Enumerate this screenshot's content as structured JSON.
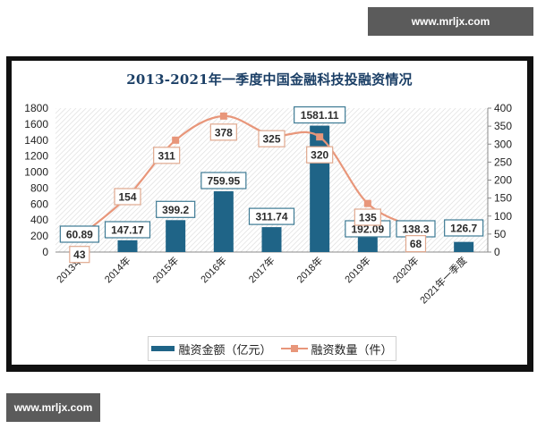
{
  "watermark": {
    "top": "www.mrljx.com",
    "bottom": "www.mrljx.com"
  },
  "colors": {
    "bar": "#1f6487",
    "line": "#e8967a",
    "title": "#1b3f66",
    "frame": "#111111"
  },
  "chart_data": {
    "type": "bar+line",
    "title": "2013-2021年一季度中国金融科技投融资情况",
    "categories": [
      "2013年",
      "2014年",
      "2015年",
      "2016年",
      "2017年",
      "2018年",
      "2019年",
      "2020年",
      "2021年一季度"
    ],
    "series": [
      {
        "name": "融资金额（亿元）",
        "type": "bar",
        "axis": "left",
        "values": [
          60.89,
          147.17,
          399.2,
          759.95,
          311.74,
          1581.11,
          192.09,
          138.3,
          126.7
        ]
      },
      {
        "name": "融资数量（件）",
        "type": "line",
        "axis": "right",
        "values": [
          43,
          154,
          311,
          378,
          325,
          320,
          135,
          68,
          null
        ]
      }
    ],
    "y_left": {
      "ticks": [
        "0",
        "200",
        "400",
        "600",
        "800",
        "1000",
        "1200",
        "1400",
        "1600",
        "1800"
      ],
      "ylim": [
        0,
        1800
      ]
    },
    "y_right": {
      "ticks": [
        "0",
        "50",
        "100",
        "150",
        "200",
        "250",
        "300",
        "350",
        "400"
      ],
      "ylim": [
        0,
        400
      ]
    },
    "xlabel": "",
    "ylabel": "",
    "grid": false,
    "legend_position": "bottom",
    "bar_labels": [
      "60.89",
      "147.17",
      "399.2",
      "759.95",
      "311.74",
      "1581.11",
      "192.09",
      "138.3",
      "126.7"
    ],
    "line_labels": [
      "43",
      "154",
      "311",
      "378",
      "325",
      "320",
      "135",
      "68"
    ]
  },
  "legend": {
    "bar_label": "融资金额（亿元）",
    "line_label": "融资数量（件）"
  }
}
